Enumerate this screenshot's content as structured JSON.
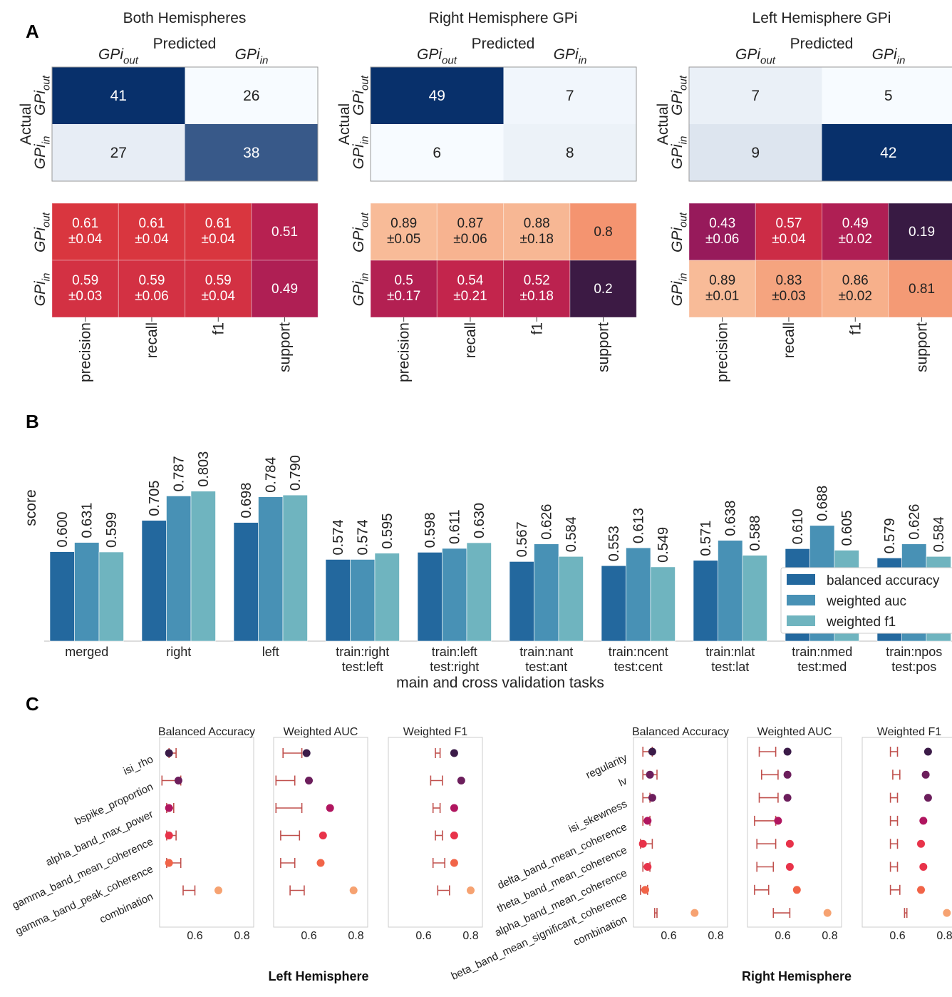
{
  "panel_letters": {
    "a": "A",
    "b": "B",
    "c": "C"
  },
  "colors": {
    "blues": [
      "#f7fbff",
      "#08306b"
    ],
    "magma_stops": [
      "#2c1a3f",
      "#4a1a48",
      "#6b1c54",
      "#9b1a5c",
      "#c1244d",
      "#e03b3b",
      "#ef6b4b",
      "#f5a27c",
      "#f9c6a5"
    ],
    "bar_colors": [
      "#23689e",
      "#4891b5",
      "#6fb4bf"
    ],
    "error_bar": "#c0504d",
    "dot_colors": [
      "#3b1b48",
      "#6c1e5c",
      "#b0155f",
      "#e8334a",
      "#f16448",
      "#f6a271"
    ]
  },
  "panel_a": {
    "predicted_label": "Predicted",
    "actual_label": "Actual",
    "class_out": "GPi",
    "class_out_sub": "out",
    "class_in": "GPi",
    "class_in_sub": "in",
    "report_columns": [
      "precision",
      "recall",
      "f1",
      "support"
    ],
    "blocks": [
      {
        "title": "Both Hemispheres",
        "confusion": [
          [
            41,
            26
          ],
          [
            27,
            38
          ]
        ],
        "report_rows": [
          [
            "0.61\n±0.04",
            "0.61\n±0.04",
            "0.61\n±0.04",
            "0.51"
          ],
          [
            "0.59\n±0.03",
            "0.59\n±0.06",
            "0.59\n±0.04",
            "0.49"
          ]
        ],
        "report_values": [
          [
            0.61,
            0.61,
            0.61,
            0.51
          ],
          [
            0.59,
            0.59,
            0.59,
            0.49
          ]
        ]
      },
      {
        "title": "Right Hemisphere GPi",
        "confusion": [
          [
            49,
            7
          ],
          [
            6,
            8
          ]
        ],
        "report_rows": [
          [
            "0.89\n±0.05",
            "0.87\n±0.06",
            "0.88\n±0.18",
            "0.8"
          ],
          [
            "0.5\n±0.17",
            "0.54\n±0.21",
            "0.52\n±0.18",
            "0.2"
          ]
        ],
        "report_values": [
          [
            0.89,
            0.87,
            0.88,
            0.8
          ],
          [
            0.5,
            0.54,
            0.52,
            0.2
          ]
        ]
      },
      {
        "title": "Left Hemisphere GPi",
        "confusion": [
          [
            7,
            5
          ],
          [
            9,
            42
          ]
        ],
        "report_rows": [
          [
            "0.43\n±0.06",
            "0.57\n±0.04",
            "0.49\n±0.02",
            "0.19"
          ],
          [
            "0.89\n±0.01",
            "0.83\n±0.03",
            "0.86\n±0.02",
            "0.81"
          ]
        ],
        "report_values": [
          [
            0.43,
            0.57,
            0.49,
            0.19
          ],
          [
            0.89,
            0.83,
            0.86,
            0.81
          ]
        ]
      }
    ]
  },
  "chart_data": [
    {
      "type": "bar",
      "categories": [
        "merged",
        "right",
        "left",
        "train:right\ntest:left",
        "train:left\ntest:right",
        "train:nant\ntest:ant",
        "train:ncent\ntest:cent",
        "train:nlat\ntest:lat",
        "train:nmed\ntest:med",
        "train:npos\ntest:pos"
      ],
      "series": [
        {
          "name": "balanced accuracy",
          "values": [
            0.6,
            0.705,
            0.698,
            0.574,
            0.598,
            0.567,
            0.553,
            0.571,
            0.61,
            0.579
          ]
        },
        {
          "name": "weighted auc",
          "values": [
            0.631,
            0.787,
            0.784,
            0.574,
            0.611,
            0.626,
            0.613,
            0.638,
            0.688,
            0.626
          ]
        },
        {
          "name": "weighted f1",
          "values": [
            0.599,
            0.803,
            0.79,
            0.595,
            0.63,
            0.584,
            0.549,
            0.588,
            0.605,
            0.584
          ]
        }
      ],
      "value_labels": [
        [
          "0.600",
          "0.631",
          "0.599"
        ],
        [
          "0.705",
          "0.787",
          "0.803"
        ],
        [
          "0.698",
          "0.784",
          "0.790"
        ],
        [
          "0.574",
          "0.574",
          "0.595"
        ],
        [
          "0.598",
          "0.611",
          "0.630"
        ],
        [
          "0.567",
          "0.626",
          "0.584"
        ],
        [
          "0.553",
          "0.613",
          "0.549"
        ],
        [
          "0.571",
          "0.638",
          "0.588"
        ],
        [
          "0.610",
          "0.688",
          "0.605"
        ],
        [
          "0.579",
          "0.626",
          "0.584"
        ]
      ],
      "xlabel": "main and cross validation tasks",
      "ylabel": "score",
      "ylim": [
        0.3,
        0.85
      ],
      "legend_position": "bottom-right"
    },
    {
      "type": "scatter",
      "group_title": "Left Hemisphere",
      "features": [
        "isi_rho",
        "bspike_proportion",
        "alpha_band_max_power",
        "gamma_band_mean_coherence",
        "gamma_band_peak_coherence",
        "combination"
      ],
      "panels": [
        {
          "title": "Balanced Accuracy",
          "scores": [
            0.49,
            0.53,
            0.49,
            0.49,
            0.49,
            0.7
          ],
          "null_ranges": [
            [
              0.49,
              0.52
            ],
            [
              0.46,
              0.54
            ],
            [
              0.48,
              0.51
            ],
            [
              0.48,
              0.52
            ],
            [
              0.48,
              0.54
            ],
            [
              0.55,
              0.6
            ]
          ]
        },
        {
          "title": "Weighted AUC",
          "scores": [
            0.59,
            0.6,
            0.69,
            0.66,
            0.65,
            0.79
          ],
          "null_ranges": [
            [
              0.49,
              0.57
            ],
            [
              0.46,
              0.54
            ],
            [
              0.46,
              0.57
            ],
            [
              0.48,
              0.56
            ],
            [
              0.48,
              0.54
            ],
            [
              0.52,
              0.58
            ]
          ]
        },
        {
          "title": "Weighted F1",
          "scores": [
            0.73,
            0.76,
            0.73,
            0.73,
            0.73,
            0.8
          ],
          "null_ranges": [
            [
              0.65,
              0.67
            ],
            [
              0.63,
              0.68
            ],
            [
              0.64,
              0.67
            ],
            [
              0.65,
              0.68
            ],
            [
              0.64,
              0.69
            ],
            [
              0.66,
              0.71
            ]
          ]
        }
      ],
      "xlim": [
        0.45,
        0.85
      ],
      "xticks": [
        "0.6",
        "0.8"
      ]
    },
    {
      "type": "scatter",
      "group_title": "Right Hemisphere",
      "features": [
        "regularity",
        "lv",
        "isi_skewness",
        "delta_band_mean_coherence",
        "theta_band_mean_coherence",
        "alpha_band_mean_coherence",
        "beta_band_mean_significant_coherence",
        "combination"
      ],
      "panels": [
        {
          "title": "Balanced Accuracy",
          "scores": [
            0.53,
            0.52,
            0.53,
            0.51,
            0.49,
            0.51,
            0.5,
            0.71
          ],
          "null_ranges": [
            [
              0.49,
              0.53
            ],
            [
              0.49,
              0.55
            ],
            [
              0.49,
              0.52
            ],
            [
              0.49,
              0.52
            ],
            [
              0.48,
              0.53
            ],
            [
              0.49,
              0.52
            ],
            [
              0.48,
              0.51
            ],
            [
              0.54,
              0.55
            ]
          ]
        },
        {
          "title": "Weighted AUC",
          "scores": [
            0.62,
            0.62,
            0.62,
            0.58,
            0.63,
            0.63,
            0.66,
            0.79
          ],
          "null_ranges": [
            [
              0.5,
              0.57
            ],
            [
              0.51,
              0.58
            ],
            [
              0.5,
              0.58
            ],
            [
              0.48,
              0.57
            ],
            [
              0.49,
              0.57
            ],
            [
              0.49,
              0.56
            ],
            [
              0.48,
              0.54
            ],
            [
              0.56,
              0.63
            ]
          ]
        },
        {
          "title": "Weighted F1",
          "scores": [
            0.73,
            0.72,
            0.73,
            0.71,
            0.7,
            0.71,
            0.7,
            0.81
          ],
          "null_ranges": [
            [
              0.57,
              0.6
            ],
            [
              0.58,
              0.61
            ],
            [
              0.57,
              0.6
            ],
            [
              0.57,
              0.6
            ],
            [
              0.57,
              0.6
            ],
            [
              0.57,
              0.6
            ],
            [
              0.57,
              0.61
            ],
            [
              0.63,
              0.64
            ]
          ]
        }
      ],
      "xlim": [
        0.45,
        0.85
      ],
      "xticks": [
        "0.6",
        "0.8"
      ]
    }
  ]
}
